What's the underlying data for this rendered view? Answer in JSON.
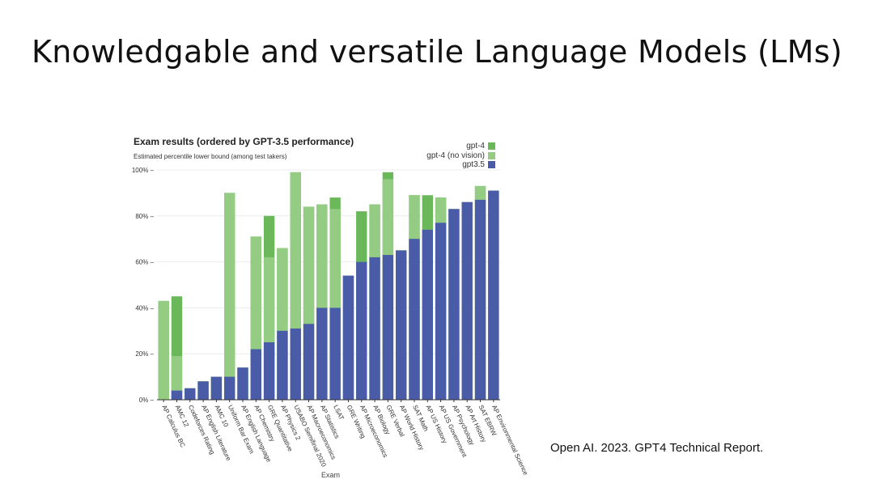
{
  "slide": {
    "title": "Knowledgable and versatile Language Models (LMs)",
    "citation": "Open AI. 2023. GPT4 Technical Report."
  },
  "chart_data": {
    "type": "bar",
    "title": "Exam results (ordered by GPT-3.5 performance)",
    "subtitle": "Estimated percentile lower bound (among test takers)",
    "xlabel": "Exam",
    "ylabel": "",
    "ylim": [
      0,
      100
    ],
    "yticks": [
      "0%",
      "20%",
      "40%",
      "60%",
      "80%",
      "100%"
    ],
    "legend_position": "top-right",
    "categories": [
      "AP Calculus BC",
      "AMC 12",
      "Codeforces Rating",
      "AP English Literature",
      "AMC 10",
      "Uniform Bar Exam",
      "AP English Language",
      "AP Chemistry",
      "GRE Quantitative",
      "AP Physics 2",
      "USABO Semifinal 2020",
      "AP Macroeconomics",
      "AP Statistics",
      "LSAT",
      "GRE Writing",
      "AP Microeconomics",
      "AP Biology",
      "GRE Verbal",
      "AP World History",
      "SAT Math",
      "AP US History",
      "AP US Government",
      "AP Psychology",
      "AP Art History",
      "SAT EBRW",
      "AP Environmental Science"
    ],
    "series": [
      {
        "name": "gpt3.5",
        "color": "#4a5ba8",
        "values": [
          0,
          4,
          5,
          8,
          10,
          10,
          14,
          22,
          25,
          30,
          31,
          33,
          40,
          40,
          54,
          60,
          62,
          63,
          65,
          70,
          74,
          77,
          83,
          86,
          87,
          91
        ]
      },
      {
        "name": "gpt-4 (no vision)",
        "color": "#93cc82",
        "values": [
          43,
          19,
          5,
          8,
          10,
          90,
          14,
          71,
          62,
          66,
          99,
          84,
          85,
          83,
          54,
          60,
          85,
          96,
          65,
          89,
          74,
          88,
          83,
          86,
          93,
          91
        ]
      },
      {
        "name": "gpt-4",
        "color": "#6bb85b",
        "values": [
          43,
          45,
          5,
          8,
          10,
          90,
          14,
          71,
          80,
          66,
          99,
          84,
          85,
          88,
          54,
          82,
          85,
          99,
          65,
          89,
          89,
          88,
          83,
          86,
          93,
          91
        ]
      }
    ]
  }
}
